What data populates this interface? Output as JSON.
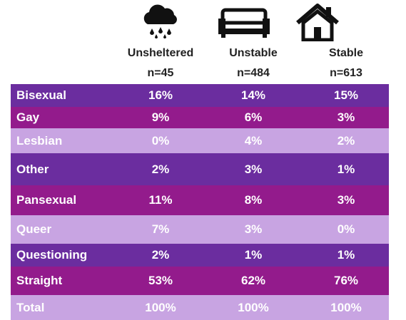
{
  "table": {
    "columns": [
      {
        "label": "Unsheltered",
        "n": "n=45"
      },
      {
        "label": "Unstable",
        "n": "n=484"
      },
      {
        "label": "Stable",
        "n": "n=613"
      }
    ],
    "rows": [
      [
        "Bisexual",
        "16%",
        "14%",
        "15%"
      ],
      [
        "Gay",
        "9%",
        "6%",
        "3%"
      ],
      [
        "Lesbian",
        "0%",
        "4%",
        "2%"
      ],
      [
        "Other",
        "2%",
        "3%",
        "1%"
      ],
      [
        "Pansexual",
        "11%",
        "8%",
        "3%"
      ],
      [
        "Queer",
        "7%",
        "3%",
        "0%"
      ],
      [
        "Questioning",
        "2%",
        "1%",
        "1%"
      ],
      [
        "Straight",
        "53%",
        "62%",
        "76%"
      ],
      [
        "Total",
        "100%",
        "100%",
        "100%"
      ]
    ]
  }
}
